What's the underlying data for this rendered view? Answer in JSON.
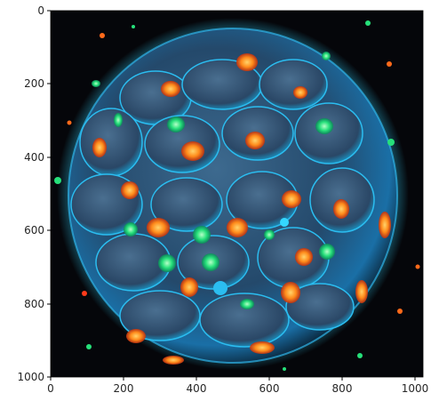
{
  "image": {
    "subject": "cell-cluster-microscopy",
    "palette": {
      "background": "#05060a",
      "membrane": "#1c5a8c",
      "cell_body": "#2f4e6e",
      "nucleus_orange": "#ff8a1a",
      "nucleus_green": "#26e07a",
      "glow_cyan": "#34d6ff"
    }
  },
  "axes": {
    "x_ticks": [
      "0",
      "200",
      "400",
      "600",
      "800",
      "1000"
    ],
    "y_ticks": [
      "0",
      "200",
      "400",
      "600",
      "800",
      "1000"
    ],
    "xlim": [
      0,
      1024
    ],
    "ylim": [
      1024,
      0
    ]
  }
}
